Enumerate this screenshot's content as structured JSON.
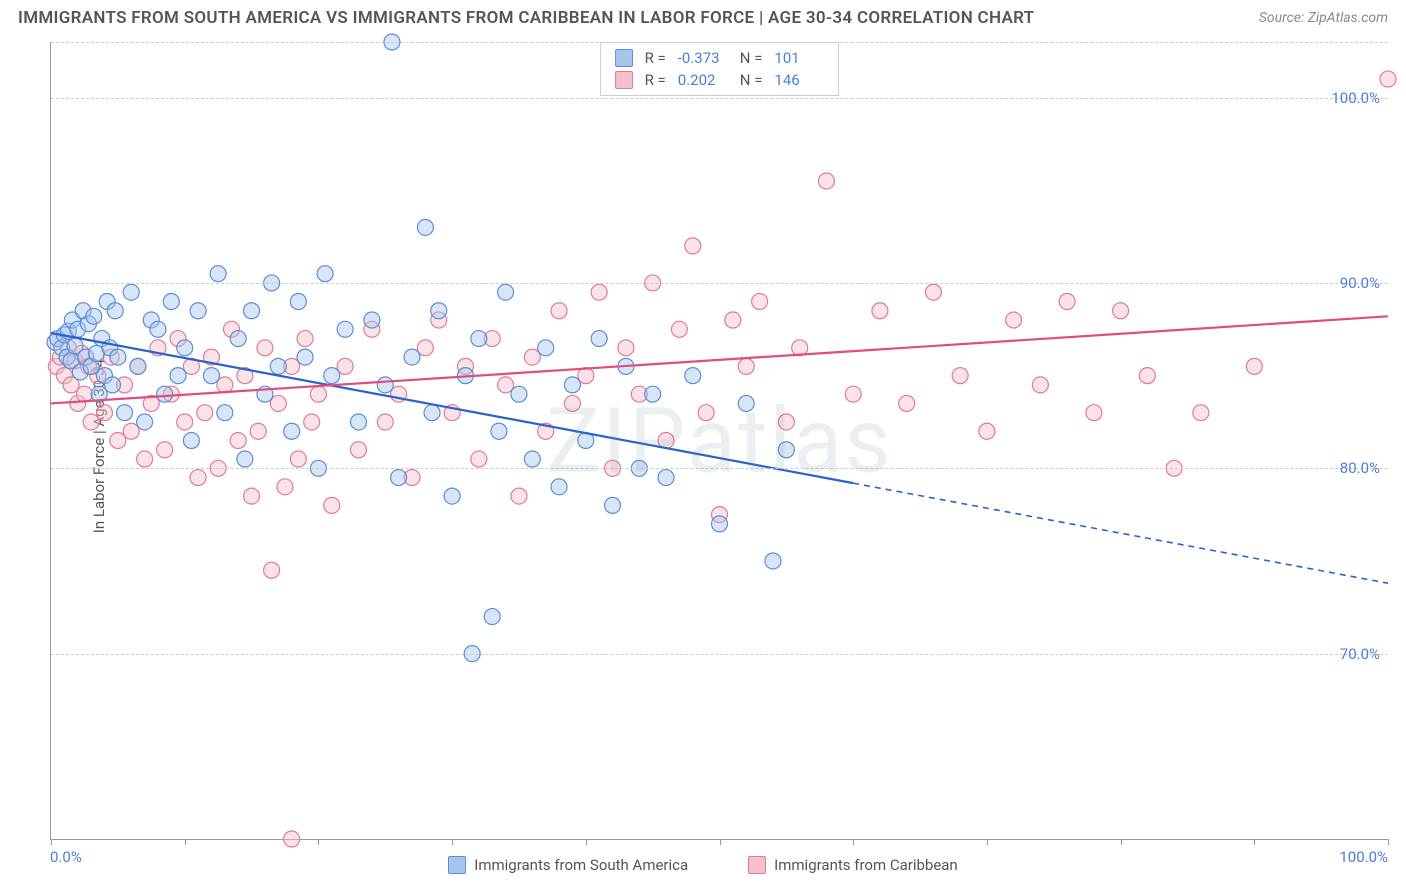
{
  "title": "IMMIGRANTS FROM SOUTH AMERICA VS IMMIGRANTS FROM CARIBBEAN IN LABOR FORCE | AGE 30-34 CORRELATION CHART",
  "source": "Source: ZipAtlas.com",
  "watermark": "ZIPatlas",
  "y_axis_title": "In Labor Force | Age 30-34",
  "chart": {
    "type": "scatter",
    "xlim": [
      0,
      100
    ],
    "ylim": [
      60,
      103
    ],
    "x_ticks": [
      0,
      10,
      20,
      30,
      40,
      50,
      60,
      70,
      80,
      90,
      100
    ],
    "x_tick_labels": {
      "0": "0.0%",
      "100": "100.0%"
    },
    "y_gridlines": [
      70,
      80,
      90,
      100,
      103
    ],
    "y_tick_labels": {
      "70": "70.0%",
      "80": "80.0%",
      "90": "90.0%",
      "100": "100.0%"
    },
    "background_color": "#ffffff",
    "grid_color": "#cccccc",
    "axis_color": "#999999",
    "marker_radius": 8,
    "marker_opacity": 0.45,
    "marker_stroke_width": 1.2,
    "line_width": 2.2,
    "series": [
      {
        "name": "Immigrants from South America",
        "color_fill": "#a9c5ed",
        "color_stroke": "#5b8fd6",
        "line_color": "#2a63c9",
        "r": -0.373,
        "n": 101,
        "trend_solid": {
          "x1": 0,
          "y1": 87.3,
          "x2": 60,
          "y2": 79.2
        },
        "trend_dashed": {
          "x1": 60,
          "y1": 79.2,
          "x2": 100,
          "y2": 73.8
        },
        "points": [
          [
            0.3,
            86.8
          ],
          [
            0.5,
            87.0
          ],
          [
            0.8,
            86.5
          ],
          [
            1.0,
            87.2
          ],
          [
            1.2,
            86.0
          ],
          [
            1.3,
            87.4
          ],
          [
            1.5,
            85.8
          ],
          [
            1.6,
            88.0
          ],
          [
            1.8,
            86.6
          ],
          [
            2.0,
            87.5
          ],
          [
            2.2,
            85.2
          ],
          [
            2.4,
            88.5
          ],
          [
            2.6,
            86.0
          ],
          [
            2.8,
            87.8
          ],
          [
            3.0,
            85.5
          ],
          [
            3.2,
            88.2
          ],
          [
            3.4,
            86.2
          ],
          [
            3.6,
            84.0
          ],
          [
            3.8,
            87.0
          ],
          [
            4.0,
            85.0
          ],
          [
            4.2,
            89.0
          ],
          [
            4.4,
            86.5
          ],
          [
            4.6,
            84.5
          ],
          [
            4.8,
            88.5
          ],
          [
            5.0,
            86.0
          ],
          [
            5.5,
            83.0
          ],
          [
            6.0,
            89.5
          ],
          [
            6.5,
            85.5
          ],
          [
            7.0,
            82.5
          ],
          [
            7.5,
            88.0
          ],
          [
            8.0,
            87.5
          ],
          [
            8.5,
            84.0
          ],
          [
            9.0,
            89.0
          ],
          [
            9.5,
            85.0
          ],
          [
            10.0,
            86.5
          ],
          [
            10.5,
            81.5
          ],
          [
            11.0,
            88.5
          ],
          [
            12.0,
            85.0
          ],
          [
            12.5,
            90.5
          ],
          [
            13.0,
            83.0
          ],
          [
            14.0,
            87.0
          ],
          [
            14.5,
            80.5
          ],
          [
            15.0,
            88.5
          ],
          [
            16.0,
            84.0
          ],
          [
            16.5,
            90.0
          ],
          [
            17.0,
            85.5
          ],
          [
            18.0,
            82.0
          ],
          [
            18.5,
            89.0
          ],
          [
            19.0,
            86.0
          ],
          [
            20.0,
            80.0
          ],
          [
            20.5,
            90.5
          ],
          [
            21.0,
            85.0
          ],
          [
            22.0,
            87.5
          ],
          [
            23.0,
            82.5
          ],
          [
            24.0,
            88.0
          ],
          [
            25.0,
            84.5
          ],
          [
            25.5,
            103.0
          ],
          [
            26.0,
            79.5
          ],
          [
            27.0,
            86.0
          ],
          [
            28.0,
            93.0
          ],
          [
            28.5,
            83.0
          ],
          [
            29.0,
            88.5
          ],
          [
            30.0,
            78.5
          ],
          [
            31.0,
            85.0
          ],
          [
            31.5,
            70.0
          ],
          [
            32.0,
            87.0
          ],
          [
            33.0,
            72.0
          ],
          [
            33.5,
            82.0
          ],
          [
            34.0,
            89.5
          ],
          [
            35.0,
            84.0
          ],
          [
            36.0,
            80.5
          ],
          [
            37.0,
            86.5
          ],
          [
            38.0,
            79.0
          ],
          [
            39.0,
            84.5
          ],
          [
            40.0,
            81.5
          ],
          [
            41.0,
            87.0
          ],
          [
            42.0,
            78.0
          ],
          [
            43.0,
            85.5
          ],
          [
            44.0,
            80.0
          ],
          [
            45.0,
            84.0
          ],
          [
            46.0,
            79.5
          ],
          [
            48.0,
            85.0
          ],
          [
            50.0,
            77.0
          ],
          [
            52.0,
            83.5
          ],
          [
            54.0,
            75.0
          ],
          [
            55.0,
            81.0
          ]
        ]
      },
      {
        "name": "Immigrants from Caribbean",
        "color_fill": "#f4c0cc",
        "color_stroke": "#e27a95",
        "line_color": "#e04d7a",
        "r": 0.202,
        "n": 146,
        "trend_solid": {
          "x1": 0,
          "y1": 83.5,
          "x2": 100,
          "y2": 88.2
        },
        "trend_dashed": null,
        "points": [
          [
            0.4,
            85.5
          ],
          [
            0.7,
            86.0
          ],
          [
            1.0,
            85.0
          ],
          [
            1.3,
            86.5
          ],
          [
            1.5,
            84.5
          ],
          [
            1.8,
            85.8
          ],
          [
            2.0,
            83.5
          ],
          [
            2.3,
            86.2
          ],
          [
            2.5,
            84.0
          ],
          [
            2.8,
            85.5
          ],
          [
            3.0,
            82.5
          ],
          [
            3.5,
            85.0
          ],
          [
            4.0,
            83.0
          ],
          [
            4.5,
            86.0
          ],
          [
            5.0,
            81.5
          ],
          [
            5.5,
            84.5
          ],
          [
            6.0,
            82.0
          ],
          [
            6.5,
            85.5
          ],
          [
            7.0,
            80.5
          ],
          [
            7.5,
            83.5
          ],
          [
            8.0,
            86.5
          ],
          [
            8.5,
            81.0
          ],
          [
            9.0,
            84.0
          ],
          [
            9.5,
            87.0
          ],
          [
            10.0,
            82.5
          ],
          [
            10.5,
            85.5
          ],
          [
            11.0,
            79.5
          ],
          [
            11.5,
            83.0
          ],
          [
            12.0,
            86.0
          ],
          [
            12.5,
            80.0
          ],
          [
            13.0,
            84.5
          ],
          [
            13.5,
            87.5
          ],
          [
            14.0,
            81.5
          ],
          [
            14.5,
            85.0
          ],
          [
            15.0,
            78.5
          ],
          [
            15.5,
            82.0
          ],
          [
            16.0,
            86.5
          ],
          [
            16.5,
            74.5
          ],
          [
            17.0,
            83.5
          ],
          [
            17.5,
            79.0
          ],
          [
            18.0,
            85.5
          ],
          [
            18.5,
            80.5
          ],
          [
            19.0,
            87.0
          ],
          [
            19.5,
            82.5
          ],
          [
            20.0,
            84.0
          ],
          [
            21.0,
            78.0
          ],
          [
            22.0,
            85.5
          ],
          [
            23.0,
            81.0
          ],
          [
            24.0,
            87.5
          ],
          [
            25.0,
            82.5
          ],
          [
            26.0,
            84.0
          ],
          [
            27.0,
            79.5
          ],
          [
            28.0,
            86.5
          ],
          [
            29.0,
            88.0
          ],
          [
            30.0,
            83.0
          ],
          [
            31.0,
            85.5
          ],
          [
            32.0,
            80.5
          ],
          [
            33.0,
            87.0
          ],
          [
            34.0,
            84.5
          ],
          [
            35.0,
            78.5
          ],
          [
            36.0,
            86.0
          ],
          [
            37.0,
            82.0
          ],
          [
            38.0,
            88.5
          ],
          [
            39.0,
            83.5
          ],
          [
            40.0,
            85.0
          ],
          [
            41.0,
            89.5
          ],
          [
            42.0,
            80.0
          ],
          [
            43.0,
            86.5
          ],
          [
            44.0,
            84.0
          ],
          [
            45.0,
            90.0
          ],
          [
            46.0,
            81.5
          ],
          [
            47.0,
            87.5
          ],
          [
            48.0,
            92.0
          ],
          [
            49.0,
            83.0
          ],
          [
            50.0,
            77.5
          ],
          [
            51.0,
            88.0
          ],
          [
            52.0,
            85.5
          ],
          [
            53.0,
            89.0
          ],
          [
            55.0,
            82.5
          ],
          [
            56.0,
            86.5
          ],
          [
            58.0,
            95.5
          ],
          [
            60.0,
            84.0
          ],
          [
            62.0,
            88.5
          ],
          [
            64.0,
            83.5
          ],
          [
            66.0,
            89.5
          ],
          [
            68.0,
            85.0
          ],
          [
            70.0,
            82.0
          ],
          [
            72.0,
            88.0
          ],
          [
            74.0,
            84.5
          ],
          [
            76.0,
            89.0
          ],
          [
            78.0,
            83.0
          ],
          [
            80.0,
            88.5
          ],
          [
            82.0,
            85.0
          ],
          [
            84.0,
            80.0
          ],
          [
            86.0,
            83.0
          ],
          [
            90.0,
            85.5
          ],
          [
            100.0,
            101.0
          ],
          [
            18.0,
            60.0
          ]
        ]
      }
    ]
  },
  "top_legend_labels": {
    "r": "R =",
    "n": "N ="
  },
  "bottom_legend": [
    {
      "label": "Immigrants from South America",
      "fill": "#a9c5ed",
      "stroke": "#5b8fd6"
    },
    {
      "label": "Immigrants from Caribbean",
      "fill": "#f4c0cc",
      "stroke": "#e27a95"
    }
  ]
}
